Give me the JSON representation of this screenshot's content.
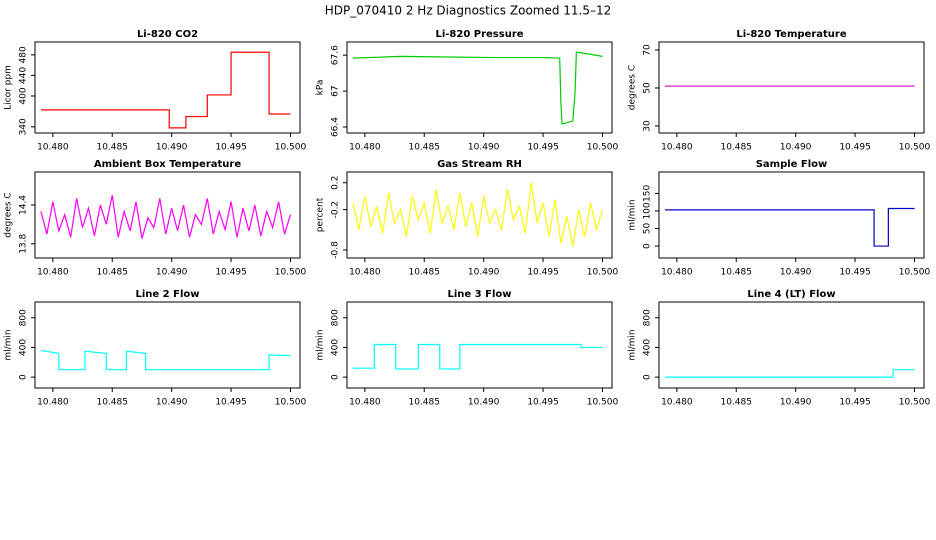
{
  "title": "HDP_070410  2 Hz Diagnostics Zoomed 11.5–12",
  "chart_data": [
    {
      "type": "line",
      "title": "Li-820 CO2",
      "ylabel": "Licor ppm",
      "color": "#ff0000",
      "x": [
        10.479,
        10.4898,
        10.4898,
        10.4912,
        10.4912,
        10.493,
        10.493,
        10.495,
        10.495,
        10.4982,
        10.4982,
        10.5
      ],
      "values": [
        373,
        373,
        338,
        338,
        360,
        360,
        402,
        402,
        485,
        485,
        365,
        365
      ],
      "xlim": [
        10.4785,
        10.5008
      ],
      "xticks": [
        {
          "value": 10.48,
          "label": "10.480"
        },
        {
          "value": 10.485,
          "label": "10.485"
        },
        {
          "value": 10.49,
          "label": "10.490"
        },
        {
          "value": 10.495,
          "label": "10.495"
        },
        {
          "value": 10.5,
          "label": "10.500"
        }
      ],
      "ylim": [
        328,
        505
      ],
      "yticks": [
        340,
        400,
        440,
        480
      ]
    },
    {
      "type": "line",
      "title": "Li-820 Pressure",
      "ylabel": "kPa",
      "color": "#00cc00",
      "x": [
        10.479,
        10.483,
        10.487,
        10.491,
        10.495,
        10.4964,
        10.4965,
        10.4966,
        10.4975,
        10.4977,
        10.4978,
        10.4985,
        10.5
      ],
      "values": [
        67.55,
        67.58,
        67.57,
        67.56,
        67.56,
        67.55,
        66.8,
        66.45,
        66.5,
        67.0,
        67.65,
        67.63,
        67.58
      ],
      "xlim": [
        10.4785,
        10.5008
      ],
      "xticks": [
        {
          "value": 10.48,
          "label": "10.480"
        },
        {
          "value": 10.485,
          "label": "10.485"
        },
        {
          "value": 10.49,
          "label": "10.490"
        },
        {
          "value": 10.495,
          "label": "10.495"
        },
        {
          "value": 10.5,
          "label": "10.500"
        }
      ],
      "ylim": [
        66.3,
        67.82
      ],
      "yticks": [
        66.4,
        67.0,
        67.6
      ]
    },
    {
      "type": "line",
      "title": "Li-820 Temperature",
      "ylabel": "degrees C",
      "color": "#cc00cc",
      "x": [
        10.479,
        10.5
      ],
      "values": [
        51,
        51
      ],
      "xlim": [
        10.4785,
        10.5008
      ],
      "xticks": [
        {
          "value": 10.48,
          "label": "10.480"
        },
        {
          "value": 10.485,
          "label": "10.485"
        },
        {
          "value": 10.49,
          "label": "10.490"
        },
        {
          "value": 10.495,
          "label": "10.495"
        },
        {
          "value": 10.5,
          "label": "10.500"
        }
      ],
      "ylim": [
        26.3,
        74.2
      ],
      "yticks": [
        30,
        50,
        70
      ]
    },
    {
      "type": "line",
      "title": "Ambient Box Temperature",
      "ylabel": "degrees C",
      "color": "#ff00ff",
      "x": [
        10.479,
        10.4795,
        10.48,
        10.4805,
        10.481,
        10.4815,
        10.482,
        10.4825,
        10.483,
        10.4835,
        10.484,
        10.4845,
        10.485,
        10.4855,
        10.486,
        10.4865,
        10.487,
        10.4875,
        10.488,
        10.4885,
        10.489,
        10.4895,
        10.49,
        10.4905,
        10.491,
        10.4915,
        10.492,
        10.4925,
        10.493,
        10.4935,
        10.494,
        10.4945,
        10.495,
        10.4955,
        10.496,
        10.4965,
        10.497,
        10.4975,
        10.498,
        10.4985,
        10.499,
        10.4995,
        10.5
      ],
      "values": [
        14.3,
        13.95,
        14.45,
        14.0,
        14.25,
        13.9,
        14.5,
        14.05,
        14.35,
        13.92,
        14.4,
        14.1,
        14.55,
        13.9,
        14.3,
        14.0,
        14.45,
        13.88,
        14.2,
        14.05,
        14.5,
        13.95,
        14.35,
        14.0,
        14.4,
        13.9,
        14.25,
        14.1,
        14.5,
        13.95,
        14.3,
        14.02,
        14.45,
        13.9,
        14.35,
        14.0,
        14.4,
        13.92,
        14.3,
        14.05,
        14.45,
        13.95,
        14.25
      ],
      "xlim": [
        10.4785,
        10.5008
      ],
      "xticks": [
        {
          "value": 10.48,
          "label": "10.480"
        },
        {
          "value": 10.485,
          "label": "10.485"
        },
        {
          "value": 10.49,
          "label": "10.490"
        },
        {
          "value": 10.495,
          "label": "10.495"
        },
        {
          "value": 10.5,
          "label": "10.500"
        }
      ],
      "ylim": [
        13.58,
        14.91
      ],
      "yticks": [
        13.8,
        14.4
      ]
    },
    {
      "type": "line",
      "title": "Gas Stream RH",
      "ylabel": "percent",
      "color": "#ffff00",
      "x": [
        10.479,
        10.4795,
        10.48,
        10.4805,
        10.481,
        10.4815,
        10.482,
        10.4825,
        10.483,
        10.4835,
        10.484,
        10.4845,
        10.485,
        10.4855,
        10.486,
        10.4865,
        10.487,
        10.4875,
        10.488,
        10.4885,
        10.489,
        10.4895,
        10.49,
        10.4905,
        10.491,
        10.4915,
        10.492,
        10.4925,
        10.493,
        10.4935,
        10.494,
        10.4945,
        10.495,
        10.4955,
        10.496,
        10.4965,
        10.497,
        10.4975,
        10.498,
        10.4985,
        10.499,
        10.4995,
        10.5
      ],
      "values": [
        -0.1,
        -0.5,
        0.0,
        -0.45,
        -0.15,
        -0.55,
        0.05,
        -0.4,
        -0.2,
        -0.6,
        0.0,
        -0.35,
        -0.1,
        -0.55,
        0.1,
        -0.4,
        -0.15,
        -0.5,
        0.05,
        -0.45,
        -0.1,
        -0.6,
        0.0,
        -0.4,
        -0.2,
        -0.5,
        0.1,
        -0.35,
        -0.15,
        -0.55,
        0.2,
        -0.4,
        -0.1,
        -0.6,
        -0.05,
        -0.7,
        -0.3,
        -0.75,
        -0.2,
        -0.6,
        -0.1,
        -0.5,
        -0.2
      ],
      "xlim": [
        10.4785,
        10.5008
      ],
      "xticks": [
        {
          "value": 10.48,
          "label": "10.480"
        },
        {
          "value": 10.485,
          "label": "10.485"
        },
        {
          "value": 10.49,
          "label": "10.490"
        },
        {
          "value": 10.495,
          "label": "10.495"
        },
        {
          "value": 10.5,
          "label": "10.500"
        }
      ],
      "ylim": [
        -0.92,
        0.36
      ],
      "yticks": [
        -0.8,
        -0.2,
        0.2
      ]
    },
    {
      "type": "line",
      "title": "Sample Flow",
      "ylabel": "ml/min",
      "color": "#0000cc",
      "x": [
        10.479,
        10.4966,
        10.4966,
        10.4978,
        10.4978,
        10.5
      ],
      "values": [
        103,
        103,
        0,
        0,
        107,
        107
      ],
      "xlim": [
        10.4785,
        10.5008
      ],
      "xticks": [
        {
          "value": 10.48,
          "label": "10.480"
        },
        {
          "value": 10.485,
          "label": "10.485"
        },
        {
          "value": 10.49,
          "label": "10.490"
        },
        {
          "value": 10.495,
          "label": "10.495"
        },
        {
          "value": 10.5,
          "label": "10.500"
        }
      ],
      "ylim": [
        -34,
        211
      ],
      "yticks": [
        0,
        50,
        100,
        150
      ]
    },
    {
      "type": "line",
      "title": "Line 2 Flow",
      "ylabel": "ml/min",
      "color": "#00ffff",
      "x": [
        10.479,
        10.4805,
        10.4805,
        10.4827,
        10.4827,
        10.4845,
        10.4845,
        10.4862,
        10.4862,
        10.4878,
        10.4878,
        10.4982,
        10.4982,
        10.5
      ],
      "values": [
        360,
        320,
        100,
        100,
        350,
        320,
        100,
        100,
        350,
        320,
        100,
        100,
        300,
        290
      ],
      "xlim": [
        10.4785,
        10.5008
      ],
      "xticks": [
        {
          "value": 10.48,
          "label": "10.480"
        },
        {
          "value": 10.485,
          "label": "10.485"
        },
        {
          "value": 10.49,
          "label": "10.490"
        },
        {
          "value": 10.495,
          "label": "10.495"
        },
        {
          "value": 10.5,
          "label": "10.500"
        }
      ],
      "ylim": [
        -147,
        1013
      ],
      "yticks": [
        0,
        400,
        800
      ]
    },
    {
      "type": "line",
      "title": "Line 3 Flow",
      "ylabel": "ml/min",
      "color": "#00ffff",
      "x": [
        10.479,
        10.4808,
        10.4808,
        10.4826,
        10.4826,
        10.4845,
        10.4845,
        10.4863,
        10.4863,
        10.488,
        10.488,
        10.4982,
        10.4982,
        10.5
      ],
      "values": [
        120,
        120,
        440,
        440,
        110,
        110,
        440,
        440,
        110,
        110,
        440,
        440,
        400,
        400
      ],
      "xlim": [
        10.4785,
        10.5008
      ],
      "xticks": [
        {
          "value": 10.48,
          "label": "10.480"
        },
        {
          "value": 10.485,
          "label": "10.485"
        },
        {
          "value": 10.49,
          "label": "10.490"
        },
        {
          "value": 10.495,
          "label": "10.495"
        },
        {
          "value": 10.5,
          "label": "10.500"
        }
      ],
      "ylim": [
        -147,
        1013
      ],
      "yticks": [
        0,
        400,
        800
      ]
    },
    {
      "type": "line",
      "title": "Line 4 (LT) Flow",
      "ylabel": "ml/min",
      "color": "#00ffff",
      "x": [
        10.479,
        10.4982,
        10.4982,
        10.5
      ],
      "values": [
        0,
        0,
        100,
        100
      ],
      "xlim": [
        10.4785,
        10.5008
      ],
      "xticks": [
        {
          "value": 10.48,
          "label": "10.480"
        },
        {
          "value": 10.485,
          "label": "10.485"
        },
        {
          "value": 10.49,
          "label": "10.490"
        },
        {
          "value": 10.495,
          "label": "10.495"
        },
        {
          "value": 10.5,
          "label": "10.500"
        }
      ],
      "ylim": [
        -147,
        1013
      ],
      "yticks": [
        0,
        400,
        800
      ]
    }
  ]
}
